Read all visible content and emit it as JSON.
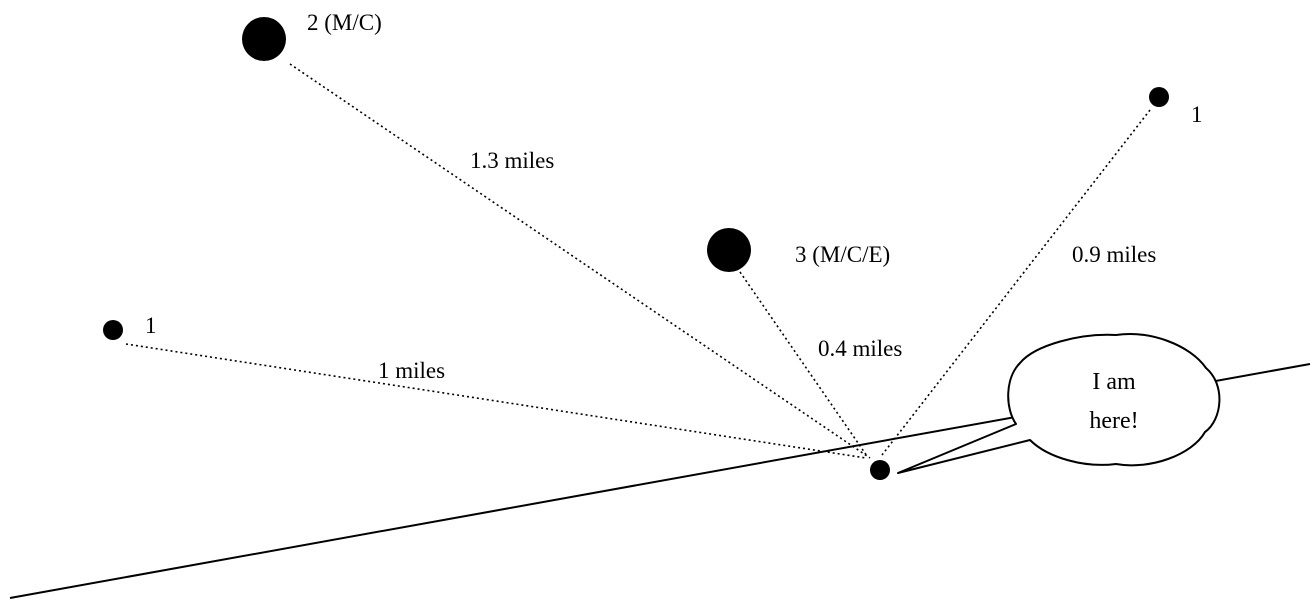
{
  "sites": [
    {
      "id": "site-2",
      "label": "2 (M/C)",
      "distance": "1.3 miles"
    },
    {
      "id": "site-3",
      "label": "3 (M/C/E)",
      "distance": "0.4 miles"
    },
    {
      "id": "site-1-right",
      "label": "1",
      "distance": "0.9 miles"
    },
    {
      "id": "site-1-left",
      "label": "1",
      "distance": "1 miles"
    }
  ],
  "callout": {
    "line1": "I am",
    "line2": "here!"
  }
}
